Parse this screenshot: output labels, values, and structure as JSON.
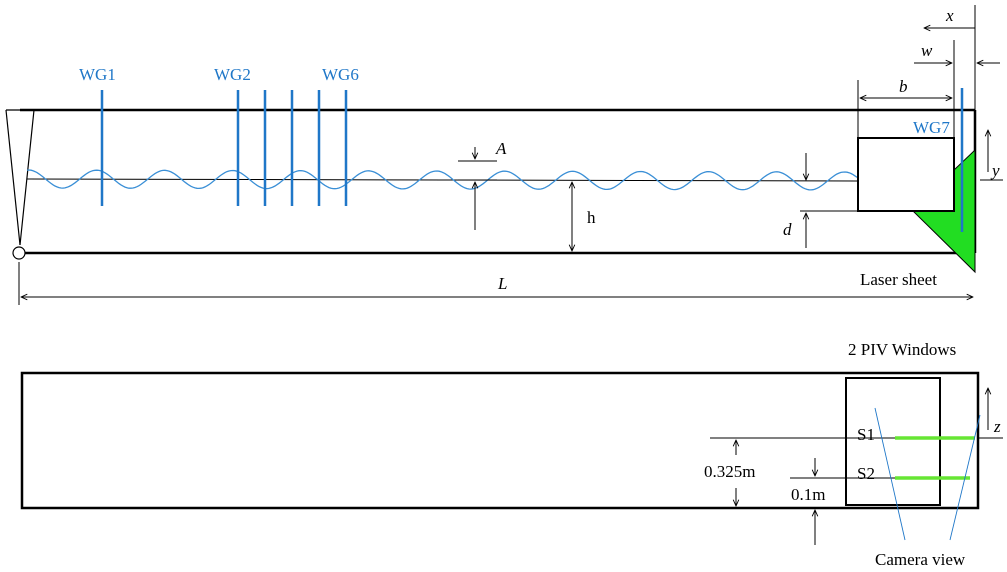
{
  "top_view": {
    "gauges": {
      "wg1": "WG1",
      "wg2": "WG2",
      "wg6": "WG6",
      "wg7": "WG7"
    },
    "dimensions": {
      "x": "x",
      "w": "w",
      "b": "b",
      "y": "y",
      "A": "A",
      "h": "h",
      "d": "d",
      "L": "L"
    },
    "laser_sheet": "Laser sheet"
  },
  "bottom_view": {
    "title": "2 PIV Windows",
    "z": "z",
    "s1": "S1",
    "s2": "S2",
    "dim_0325": "0.325m",
    "dim_01": "0.1m",
    "camera_view": "Camera view"
  },
  "colors": {
    "gauge": "#1f77c8",
    "wave": "#3a8fd6",
    "laser": "#22dd22",
    "piv_line": "#66e633",
    "outline": "#000000"
  }
}
